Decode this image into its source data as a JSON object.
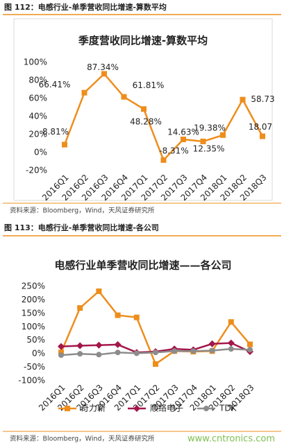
{
  "captions": [
    "图 112：电感行业-单季营收同比增速-算数平均",
    "图 113：电感行业-单季营收同比增速-各公司"
  ],
  "sources": [
    "资料来源：Bloomberg，Wind，天风证券研究所",
    "资料来源：Bloomberg，Wind，天风证券研究所"
  ],
  "watermark": "www.cntronics.com",
  "chart_data": [
    {
      "type": "line",
      "title": "季度营收同比增速-算数平均",
      "categories": [
        "2016Q1",
        "2016Q2",
        "2016Q3",
        "2016Q4",
        "2017Q1",
        "2017Q2",
        "2017Q3",
        "2017Q4",
        "2018Q1",
        "2018Q2",
        "2018Q3"
      ],
      "values": [
        8.81,
        66.41,
        87.34,
        61.81,
        48.28,
        -8.31,
        14.63,
        12.35,
        19.38,
        58.73,
        18.07
      ],
      "value_labels": [
        "8.81%",
        "66.41%",
        "87.34%",
        "61.81%",
        "48.28%",
        "-8.31%",
        "14.63%",
        "12.35%",
        "19.38%",
        "58.73",
        "18.07"
      ],
      "color": "#ee8d1c",
      "marker": "square",
      "ylim": [
        -20,
        100
      ],
      "yticks": [
        {
          "value": -20,
          "label": "-20%"
        },
        {
          "value": 0,
          "label": "0%"
        },
        {
          "value": 20,
          "label": "20%"
        },
        {
          "value": 40,
          "label": "40%"
        },
        {
          "value": 60,
          "label": "60%"
        },
        {
          "value": 80,
          "label": "80%"
        },
        {
          "value": 100,
          "label": "100%"
        }
      ],
      "grid": false
    },
    {
      "type": "line",
      "title": "电感行业单季营收同比增速——各公司",
      "categories": [
        "2016Q1",
        "2016Q2",
        "2016Q3",
        "2016Q4",
        "2017Q1",
        "2017Q2",
        "2017Q3",
        "2017Q4",
        "2018Q1",
        "2018Q2",
        "2018Q3"
      ],
      "series": [
        {
          "name": "奇力新",
          "color": "#ee8d1c",
          "marker": "square",
          "values": [
            5,
            170,
            232,
            143,
            135,
            -38,
            10,
            8,
            10,
            118,
            35
          ]
        },
        {
          "name": "顺络电子",
          "color": "#a3174a",
          "marker": "diamond",
          "values": [
            27,
            30,
            32,
            34,
            5,
            8,
            18,
            15,
            37,
            40,
            8
          ]
        },
        {
          "name": "TDK",
          "color": "#8c8c8c",
          "marker": "circle",
          "values": [
            -5,
            0,
            -3,
            5,
            2,
            5,
            10,
            10,
            12,
            18,
            15
          ]
        }
      ],
      "ylim": [
        -100,
        250
      ],
      "yticks": [
        {
          "value": -100,
          "label": "-100%"
        },
        {
          "value": -50,
          "label": "-50%"
        },
        {
          "value": 0,
          "label": "0%"
        },
        {
          "value": 50,
          "label": "50%"
        },
        {
          "value": 100,
          "label": "100%"
        },
        {
          "value": 150,
          "label": "150%"
        },
        {
          "value": 200,
          "label": "200%"
        },
        {
          "value": 250,
          "label": "250%"
        }
      ],
      "grid": false,
      "legend": "bottom"
    }
  ]
}
